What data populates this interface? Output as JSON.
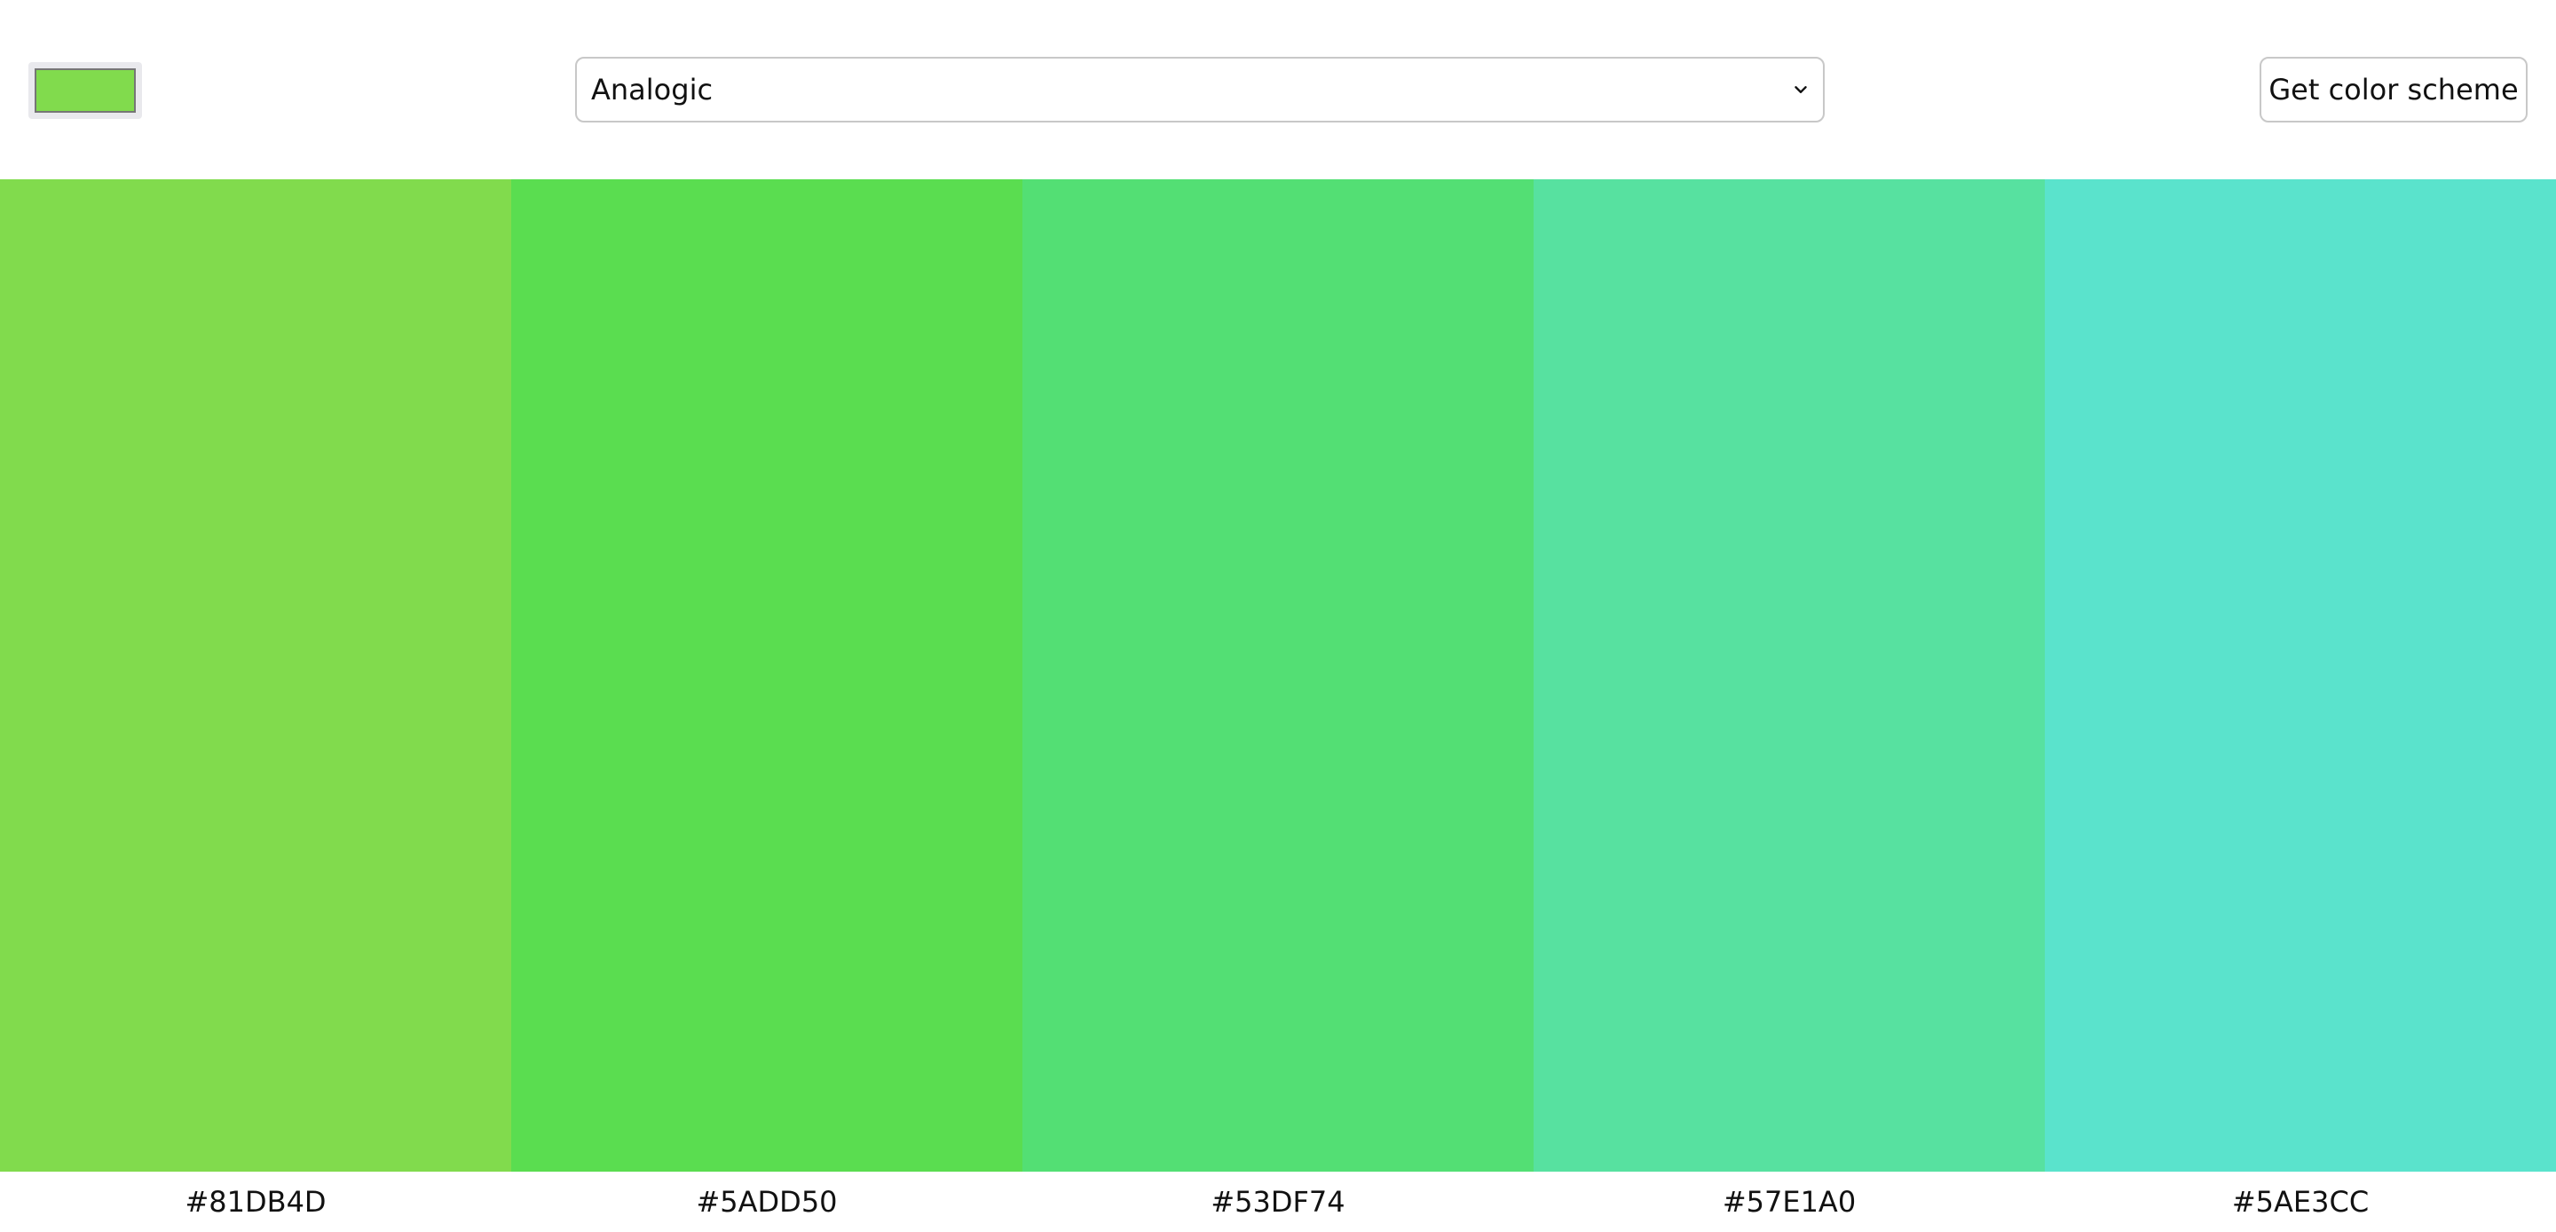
{
  "seed_color": "#81DB4D",
  "scheme_select": {
    "selected": "Analogic"
  },
  "get_button": {
    "label": "Get color scheme"
  },
  "colors": [
    {
      "hex": "#81DB4D"
    },
    {
      "hex": "#5ADD50"
    },
    {
      "hex": "#53DF74"
    },
    {
      "hex": "#57E1A0"
    },
    {
      "hex": "#5AE3CC"
    }
  ]
}
